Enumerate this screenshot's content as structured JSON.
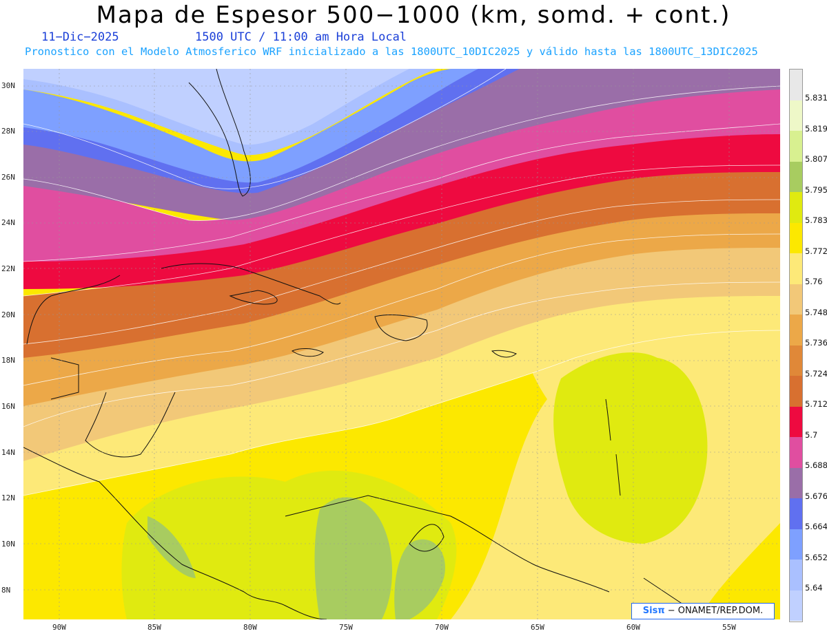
{
  "title": "Mapa de Espesor 500−1000 (km, somd. + cont.)",
  "date": "11−Dic−2025",
  "time": "1500 UTC / 11:00 am Hora Local",
  "forecast_line": "Pronostico con el Modelo Atmosferico WRF inicializado a las 1800UTC_10DIC2025 y válido hasta las  1800UTC_13DIC2025",
  "lat_labels": [
    "30N",
    "28N",
    "26N",
    "24N",
    "22N",
    "20N",
    "18N",
    "16N",
    "14N",
    "12N",
    "10N",
    "8N"
  ],
  "lon_labels": [
    "90W",
    "85W",
    "80W",
    "75W",
    "70W",
    "65W",
    "60W",
    "55W"
  ],
  "colorbar": {
    "labels": [
      "5.831",
      "5.819",
      "5.807",
      "5.795",
      "5.783",
      "5.772",
      "5.76",
      "5.748",
      "5.736",
      "5.724",
      "5.712",
      "5.7",
      "5.688",
      "5.676",
      "5.664",
      "5.652",
      "5.64"
    ],
    "colors": [
      "#e8e8e8",
      "#eef8c8",
      "#d8f090",
      "#a8cc60",
      "#e0ea10",
      "#fce800",
      "#fde978",
      "#f2c878",
      "#eca848",
      "#e08838",
      "#d87030",
      "#ee0a40",
      "#e04ea0",
      "#9a6ea8",
      "#6070f0",
      "#7ea0ff",
      "#aac0ff",
      "#c0d0ff"
    ]
  },
  "credit": {
    "brand": "Sisπ",
    "text": " − ONAMET/REP.DOM."
  }
}
